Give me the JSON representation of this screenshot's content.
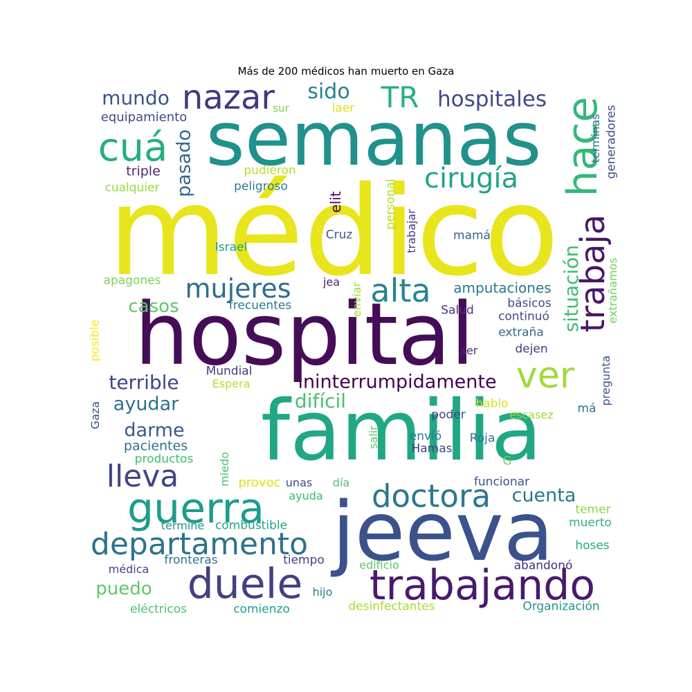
{
  "title": "Más de 200 médicos han muerto en Gaza",
  "words": [
    {
      "text": "médico",
      "color": "#e8e51c"
    },
    {
      "text": "hospital",
      "color": "#460d57"
    },
    {
      "text": "familia",
      "color": "#22a785"
    },
    {
      "text": "semanas",
      "color": "#21918c"
    },
    {
      "text": "jeeva",
      "color": "#3b528b"
    },
    {
      "text": "trabajando",
      "color": "#481a6c"
    },
    {
      "text": "duele",
      "color": "#433f85"
    },
    {
      "text": "guerra",
      "color": "#1e9c89"
    },
    {
      "text": "departamento",
      "color": "#2c728e"
    },
    {
      "text": "doctora",
      "color": "#2a788e"
    },
    {
      "text": "lleva",
      "color": "#414487"
    },
    {
      "text": "hace",
      "color": "#35b779"
    },
    {
      "text": "cuá",
      "color": "#27ad81"
    },
    {
      "text": "nazar",
      "color": "#453882"
    },
    {
      "text": "trabaja",
      "color": "#481769"
    },
    {
      "text": "ver",
      "color": "#a0da39"
    },
    {
      "text": "alta",
      "color": "#25848e"
    },
    {
      "text": "mujeres",
      "color": "#2e6d8e"
    },
    {
      "text": "cirugía",
      "color": "#20a486"
    },
    {
      "text": "ininterrumpidamente",
      "color": "#440154"
    },
    {
      "text": "TR",
      "color": "#2ab07f"
    },
    {
      "text": "hospitales",
      "color": "#3e4a89"
    },
    {
      "text": "sido",
      "color": "#26828e"
    },
    {
      "text": "mundo",
      "color": "#3b528b"
    },
    {
      "text": "pasado",
      "color": "#31688e"
    },
    {
      "text": "situación",
      "color": "#3fbc73"
    },
    {
      "text": "terrible",
      "color": "#414487"
    },
    {
      "text": "difícil",
      "color": "#4ac16d"
    },
    {
      "text": "casos",
      "color": "#5ec962"
    },
    {
      "text": "ayudar",
      "color": "#2d708e"
    },
    {
      "text": "darme",
      "color": "#38598c"
    },
    {
      "text": "cuenta",
      "color": "#2a768e"
    },
    {
      "text": "puedo",
      "color": "#5ec962"
    },
    {
      "text": "amputaciones",
      "color": "#2a788e"
    },
    {
      "text": "pacientes",
      "color": "#2c728e"
    },
    {
      "text": "equipamiento",
      "color": "#3e4a89"
    },
    {
      "text": "triple",
      "color": "#472d7b"
    },
    {
      "text": "cualquier",
      "color": "#95d840"
    },
    {
      "text": "peligroso",
      "color": "#287d8e"
    },
    {
      "text": "pudieron",
      "color": "#b5de2b"
    },
    {
      "text": "laer",
      "color": "#dfe318"
    },
    {
      "text": "sur",
      "color": "#7ad151"
    },
    {
      "text": "elit",
      "color": "#440154"
    },
    {
      "text": "personal",
      "color": "#b5de2b"
    },
    {
      "text": "trabajar",
      "color": "#443983"
    },
    {
      "text": "Cruz",
      "color": "#38598c"
    },
    {
      "text": "mamá",
      "color": "#33638d"
    },
    {
      "text": "Israel",
      "color": "#1f9e89"
    },
    {
      "text": "apagones",
      "color": "#7ad151"
    },
    {
      "text": "jea",
      "color": "#481f70"
    },
    {
      "text": "frecuentes",
      "color": "#2a788e"
    },
    {
      "text": "enviar",
      "color": "#9fda3a"
    },
    {
      "text": "básicos",
      "color": "#3e4989"
    },
    {
      "text": "Salud",
      "color": "#46327e"
    },
    {
      "text": "continuó",
      "color": "#3e4a89"
    },
    {
      "text": "extraña",
      "color": "#31688e"
    },
    {
      "text": "dejen",
      "color": "#433e85"
    },
    {
      "text": "ser",
      "color": "#472d7b"
    },
    {
      "text": "posible",
      "color": "#fde725"
    },
    {
      "text": "Mundial",
      "color": "#443983"
    },
    {
      "text": "Espera",
      "color": "#b5de2b"
    },
    {
      "text": "Gaza",
      "color": "#3b528b"
    },
    {
      "text": "salir",
      "color": "#5ec962"
    },
    {
      "text": "poder",
      "color": "#414487"
    },
    {
      "text": "envió",
      "color": "#2a788e"
    },
    {
      "text": "Roja",
      "color": "#2c728e"
    },
    {
      "text": "Hamas",
      "color": "#433e85"
    },
    {
      "text": "hablo",
      "color": "#d2e21b"
    },
    {
      "text": "escasez",
      "color": "#a0da39"
    },
    {
      "text": "má",
      "color": "#2c728e"
    },
    {
      "text": "productos",
      "color": "#3fbc73"
    },
    {
      "text": "miedo",
      "color": "#4ac16d"
    },
    {
      "text": "provoc",
      "color": "#dfe318"
    },
    {
      "text": "unas",
      "color": "#3e4989"
    },
    {
      "text": "día",
      "color": "#4ac16d"
    },
    {
      "text": "ayuda",
      "color": "#38b977"
    },
    {
      "text": "G",
      "color": "#7ad151"
    },
    {
      "text": "funcionar",
      "color": "#3b528b"
    },
    {
      "text": "termine",
      "color": "#21918c"
    },
    {
      "text": "combustible",
      "color": "#20a386"
    },
    {
      "text": "temer",
      "color": "#8ed645"
    },
    {
      "text": "muerto",
      "color": "#2fb47c"
    },
    {
      "text": "hoses",
      "color": "#22a884"
    },
    {
      "text": "fronteras",
      "color": "#2d708e"
    },
    {
      "text": "tiempo",
      "color": "#433e85"
    },
    {
      "text": "médica",
      "color": "#433e85"
    },
    {
      "text": "edificio",
      "color": "#5ec962"
    },
    {
      "text": "abandonó",
      "color": "#472d7b"
    },
    {
      "text": "hijo",
      "color": "#2a788e"
    },
    {
      "text": "eléctricos",
      "color": "#4ac16d"
    },
    {
      "text": "comienzo",
      "color": "#1f9e89"
    },
    {
      "text": "desinfectantes",
      "color": "#a8db34"
    },
    {
      "text": "Organización",
      "color": "#1f948c"
    },
    {
      "text": "terminas",
      "color": "#2d708e"
    },
    {
      "text": "generadores",
      "color": "#3b528b"
    },
    {
      "text": "extrañamos",
      "color": "#73d056"
    },
    {
      "text": "pregunta",
      "color": "#3b528b"
    }
  ]
}
